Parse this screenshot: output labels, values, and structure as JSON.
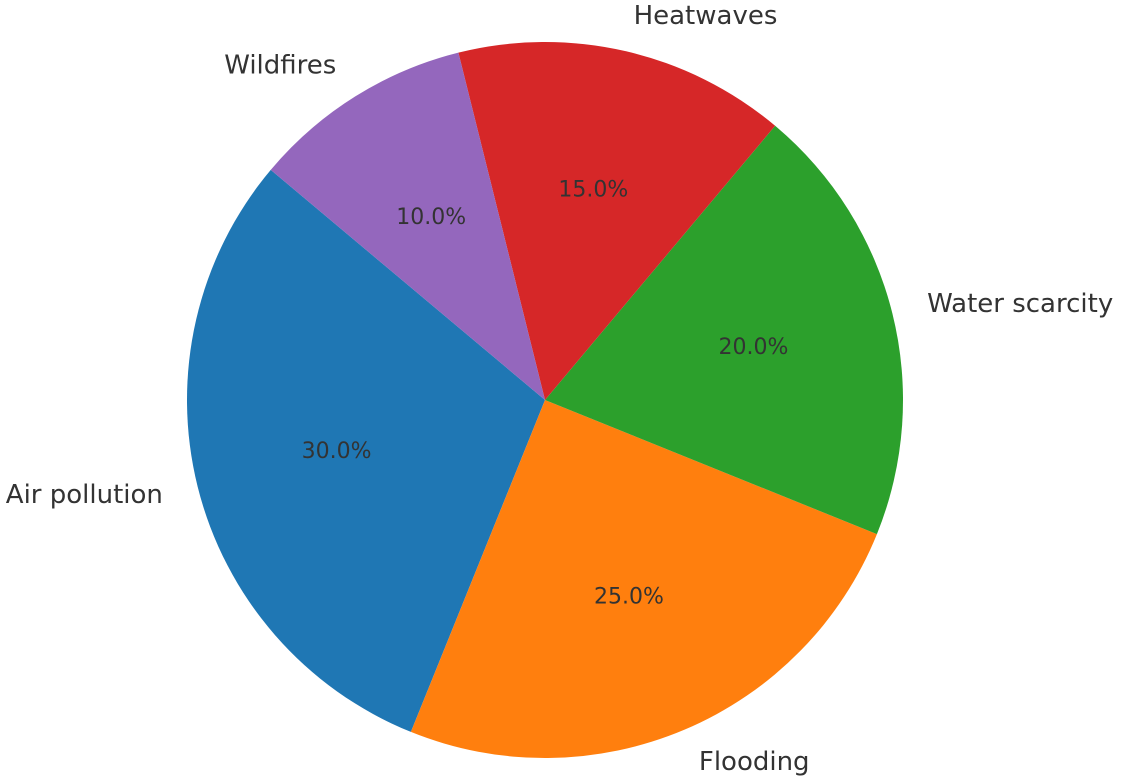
{
  "chart_data": {
    "type": "pie",
    "title": "",
    "start_angle_deg": 140,
    "direction": "counterclockwise",
    "slices": [
      {
        "label": "Air pollution",
        "value": 30.0,
        "pct_text": "30.0%",
        "color": "#1f77b4"
      },
      {
        "label": "Flooding",
        "value": 25.0,
        "pct_text": "25.0%",
        "color": "#ff7f0e"
      },
      {
        "label": "Water scarcity",
        "value": 20.0,
        "pct_text": "20.0%",
        "color": "#2ca02c"
      },
      {
        "label": "Heatwaves",
        "value": 15.0,
        "pct_text": "15.0%",
        "color": "#d62728"
      },
      {
        "label": "Wildfires",
        "value": 10.0,
        "pct_text": "10.0%",
        "color": "#9467bd"
      }
    ]
  }
}
